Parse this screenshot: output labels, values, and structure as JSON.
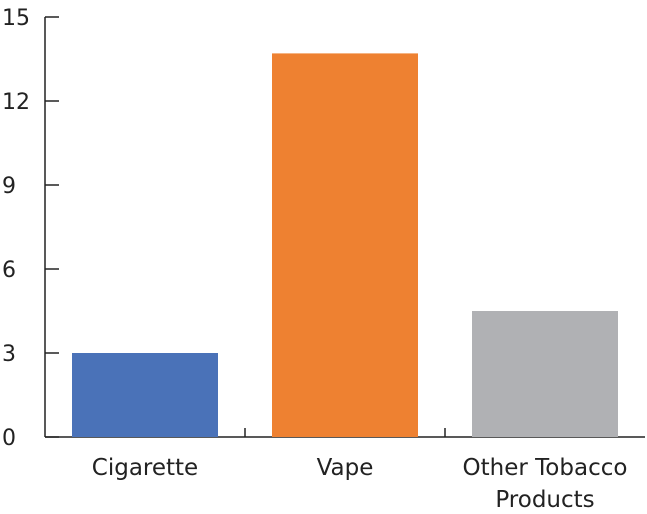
{
  "chart_data": {
    "type": "bar",
    "title": "",
    "xlabel": "",
    "ylabel": "",
    "categories": [
      [
        "Cigarette"
      ],
      [
        "Vape"
      ],
      [
        "Other Tobacco",
        "Products"
      ]
    ],
    "values": [
      3,
      13.7,
      4.5
    ],
    "ylim": [
      0,
      15
    ],
    "yticks": [
      0,
      3,
      6,
      9,
      12,
      15
    ],
    "ytick_labels": [
      "0",
      "3",
      "6",
      "9",
      "12",
      "15"
    ],
    "colors": [
      "#4a72b8",
      "#ee8131",
      "#b0b1b4"
    ],
    "grid": false,
    "legend": "none"
  }
}
